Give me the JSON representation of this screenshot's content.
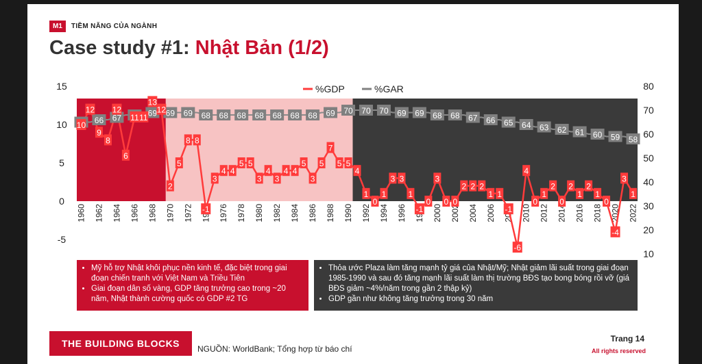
{
  "header": {
    "badge": "M1",
    "section": "TIỀM NĂNG CỦA NGÀNH"
  },
  "title": {
    "prefix": "Case study #1: ",
    "highlight": "Nhật Bản (1/2)"
  },
  "colors": {
    "accent": "#c8102e",
    "dark": "#3a3a3a",
    "pink": "#f7c3c3",
    "gar": "#808080"
  },
  "chart_data": {
    "type": "line",
    "legend": [
      "%GDP",
      "%GAR"
    ],
    "legend_position": "top-center",
    "x": [
      1960,
      1961,
      1962,
      1963,
      1964,
      1965,
      1966,
      1967,
      1968,
      1969,
      1970,
      1971,
      1972,
      1973,
      1974,
      1975,
      1976,
      1977,
      1978,
      1979,
      1980,
      1981,
      1982,
      1983,
      1984,
      1985,
      1986,
      1987,
      1988,
      1989,
      1990,
      1991,
      1992,
      1993,
      1994,
      1995,
      1996,
      1997,
      1998,
      1999,
      2000,
      2001,
      2002,
      2003,
      2004,
      2005,
      2006,
      2007,
      2008,
      2009,
      2010,
      2011,
      2012,
      2013,
      2014,
      2015,
      2016,
      2017,
      2018,
      2019,
      2020,
      2021,
      2022
    ],
    "x_tick_labels": [
      "1960",
      "1962",
      "1964",
      "1966",
      "1968",
      "1970",
      "1972",
      "1974",
      "1976",
      "1978",
      "1980",
      "1982",
      "1984",
      "1986",
      "1988",
      "1990",
      "1992",
      "1994",
      "1996",
      "1998",
      "2000",
      "2002",
      "2004",
      "2006",
      "2008",
      "2010",
      "2012",
      "2014",
      "2016",
      "2018",
      "2020",
      "2022"
    ],
    "series": [
      {
        "name": "%GDP",
        "axis": "left",
        "values": [
          10,
          12,
          9,
          8,
          12,
          6,
          11,
          11,
          13,
          12,
          2,
          5,
          8,
          8,
          -1,
          3,
          4,
          4,
          5,
          5,
          3,
          4,
          3,
          4,
          4,
          5,
          3,
          5,
          7,
          5,
          5,
          4,
          1,
          0,
          1,
          3,
          3,
          1,
          -1,
          0,
          3,
          0,
          0,
          2,
          2,
          2,
          1,
          1,
          -1,
          -6,
          4,
          0,
          1,
          2,
          0,
          2,
          1,
          2,
          1,
          0,
          -4,
          3,
          1
        ]
      },
      {
        "name": "%GAR",
        "axis": "right",
        "values": [
          65,
          65,
          66,
          66,
          67,
          68,
          68,
          69,
          69,
          69,
          69,
          69,
          69,
          69,
          68,
          68,
          68,
          68,
          68,
          68,
          68,
          68,
          68,
          68,
          68,
          68,
          68,
          69,
          69,
          69,
          70,
          70,
          70,
          70,
          70,
          69,
          69,
          69,
          69,
          69,
          68,
          68,
          68,
          68,
          67,
          67,
          66,
          66,
          65,
          65,
          64,
          63,
          63,
          62,
          62,
          61,
          61,
          60,
          60,
          59,
          59,
          59,
          58
        ]
      }
    ],
    "y_left": {
      "ticks": [
        "15",
        "10",
        "5",
        "0",
        "-5",
        "-10"
      ],
      "range": [
        -10,
        15
      ]
    },
    "y_right": {
      "ticks": [
        "80",
        "70",
        "60",
        "50",
        "40",
        "30",
        "20",
        "10",
        "0"
      ],
      "range": [
        0,
        80
      ]
    },
    "periods": [
      {
        "from": 1960,
        "to": 1969,
        "color": "#c8102e"
      },
      {
        "from": 1970,
        "to": 1990,
        "color": "#f7c3c3"
      },
      {
        "from": 1991,
        "to": 2022,
        "color": "#3a3a3a"
      }
    ]
  },
  "notes_left": [
    "Mỹ hỗ trợ Nhật khôi phục nền kinh tế, đặc biệt trong giai đoạn chiến tranh với Việt Nam và Triều Tiên",
    "Giai đoạn dân số vàng, GDP tăng trưởng cao trong ~20 năm, Nhật thành cường quốc có GDP #2 TG"
  ],
  "notes_right": [
    "Thỏa ước Plaza làm tăng mạnh tỷ giá của Nhật/Mỹ; Nhật giảm lãi suất trong giai đoạn 1985-1990 và sau đó tăng mạnh lãi suất làm thị trường BĐS tạo bong bóng rồi vỡ (giá BĐS giảm ~4%/năm trong gần 2 thập kỷ)",
    "GDP gần như không tăng trưởng trong 30 năm"
  ],
  "footer": {
    "brand": "THE BUILDING BLOCKS",
    "source": "NGUỒN: WorldBank; Tổng hợp từ báo chí",
    "page": "Trang 14",
    "rights": "All rights reserved"
  }
}
